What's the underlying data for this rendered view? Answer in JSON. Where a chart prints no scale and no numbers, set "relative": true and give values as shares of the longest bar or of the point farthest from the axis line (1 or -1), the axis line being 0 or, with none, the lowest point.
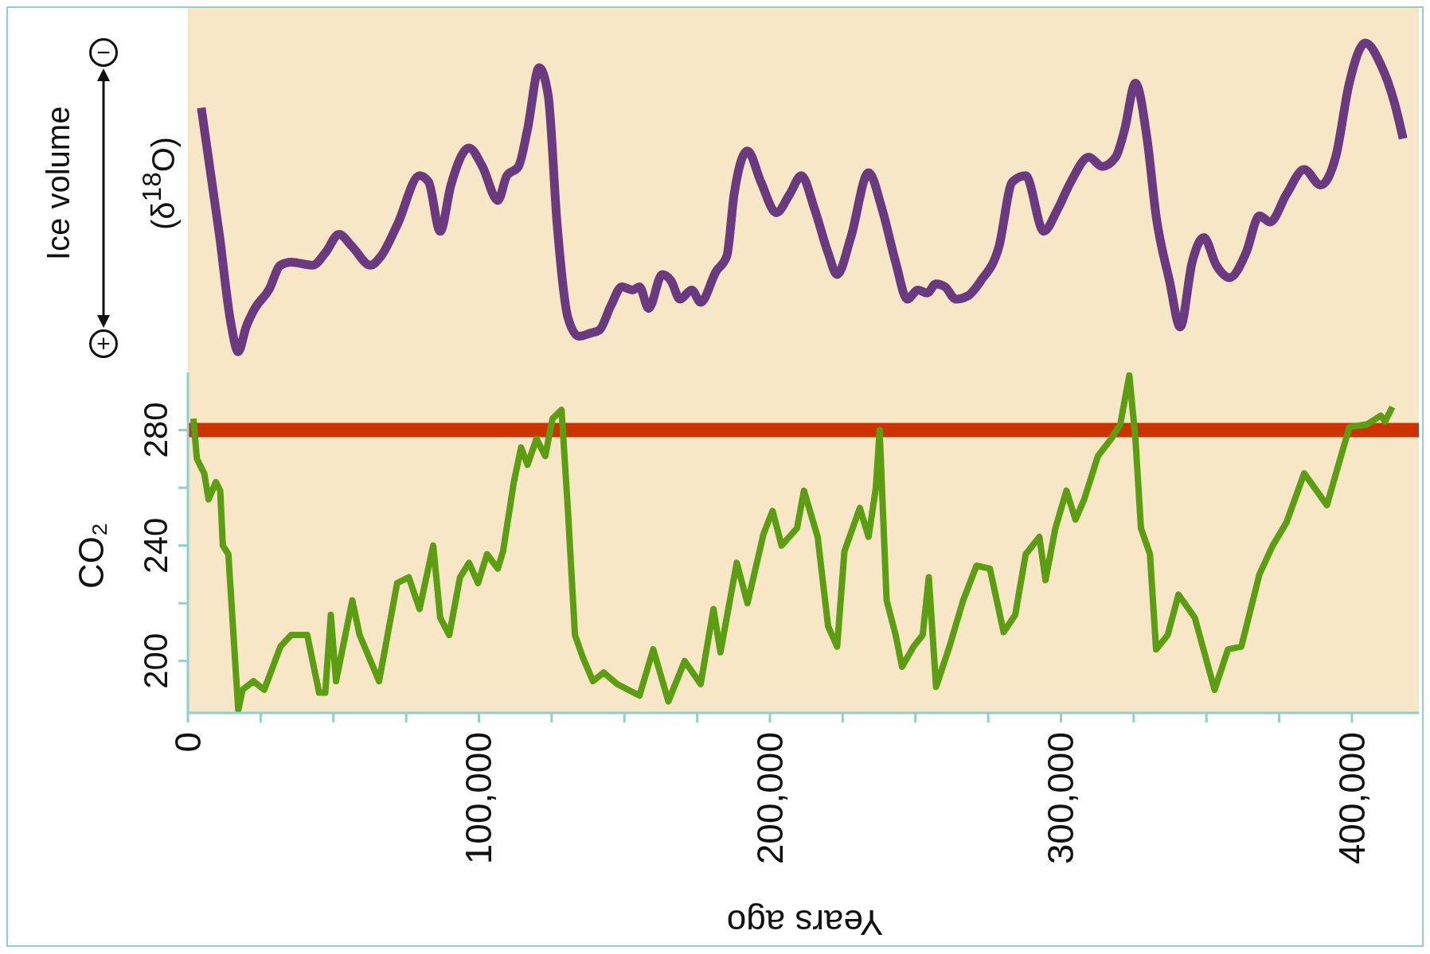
{
  "chart_data": [
    {
      "type": "line",
      "ylabel": "Ice volume (δ$^{18}$O)",
      "relative": true,
      "tick_labels": false,
      "xlim": [
        0,
        423000
      ],
      "annotations": [
        "−",
        "+"
      ],
      "series": [
        {
          "color": "#6a3a80",
          "x": [
            4600,
            10800,
            14800,
            17300,
            20000,
            23000,
            27800,
            31800,
            35500,
            42900,
            47200,
            51900,
            56500,
            62700,
            66400,
            71900,
            79600,
            82700,
            86700,
            90400,
            96600,
            101200,
            106500,
            109600,
            113600,
            116700,
            120700,
            123800,
            126900,
            130600,
            134300,
            138300,
            141400,
            145400,
            149100,
            152800,
            155200,
            158300,
            163000,
            166000,
            169100,
            173100,
            176200,
            181500,
            185200,
            187700,
            192300,
            196900,
            202200,
            206800,
            210800,
            215400,
            220000,
            223100,
            227800,
            233900,
            238600,
            243200,
            247200,
            250900,
            254000,
            257100,
            260200,
            263900,
            267900,
            272500,
            278700,
            283300,
            287900,
            294100,
            298800,
            303400,
            309600,
            314200,
            318800,
            321900,
            325600,
            329600,
            332700,
            337300,
            341000,
            345100,
            349100,
            353400,
            358000,
            363600,
            368200,
            371900,
            377500,
            383600,
            389200,
            394400,
            399100,
            404600,
            409900,
            414500,
            417600
          ],
          "values": [
            0.79,
            0.38,
            0.09,
            0,
            0.08,
            0.14,
            0.2,
            0.28,
            0.29,
            0.28,
            0.32,
            0.38,
            0.34,
            0.28,
            0.31,
            0.41,
            0.57,
            0.55,
            0.39,
            0.54,
            0.66,
            0.6,
            0.49,
            0.57,
            0.6,
            0.72,
            0.92,
            0.83,
            0.41,
            0.11,
            0.05,
            0.06,
            0.07,
            0.15,
            0.21,
            0.2,
            0.21,
            0.14,
            0.25,
            0.23,
            0.17,
            0.2,
            0.16,
            0.26,
            0.31,
            0.51,
            0.65,
            0.55,
            0.45,
            0.51,
            0.57,
            0.46,
            0.32,
            0.25,
            0.37,
            0.58,
            0.46,
            0.29,
            0.17,
            0.2,
            0.19,
            0.22,
            0.21,
            0.17,
            0.18,
            0.23,
            0.34,
            0.55,
            0.57,
            0.39,
            0.46,
            0.55,
            0.63,
            0.6,
            0.63,
            0.72,
            0.87,
            0.69,
            0.44,
            0.23,
            0.08,
            0.29,
            0.37,
            0.28,
            0.24,
            0.32,
            0.44,
            0.42,
            0.51,
            0.59,
            0.54,
            0.63,
            0.87,
            1,
            0.93,
            0.81,
            0.69
          ]
        }
      ]
    },
    {
      "type": "line",
      "xlabel": "Years ago",
      "ylabel": "CO₂",
      "xlim": [
        0,
        423000
      ],
      "xticks": [
        0,
        {
          "value": 25000,
          "label": null
        },
        {
          "value": 50000,
          "label": null
        },
        {
          "value": 75000,
          "label": null
        },
        {
          "value": 100000,
          "label": "100,000"
        },
        {
          "value": 125000,
          "label": null
        },
        {
          "value": 150000,
          "label": null
        },
        {
          "value": 175000,
          "label": null
        },
        {
          "value": 200000,
          "label": "200,000"
        },
        {
          "value": 225000,
          "label": null
        },
        {
          "value": 250000,
          "label": null
        },
        {
          "value": 275000,
          "label": null
        },
        {
          "value": 300000,
          "label": "300,000"
        },
        {
          "value": 325000,
          "label": null
        },
        {
          "value": 350000,
          "label": null
        },
        {
          "value": 375000,
          "label": null
        },
        {
          "value": 400000,
          "label": "400,000"
        }
      ],
      "ylim": [
        182,
        300
      ],
      "yticks": [
        200,
        {
          "value": 220,
          "label": null
        },
        240,
        {
          "value": 260,
          "label": null
        },
        280
      ],
      "ref_lines": [
        {
          "axis": "y",
          "value": 280,
          "color": "#cc3300"
        }
      ],
      "series": [
        {
          "color": "#5c9e12",
          "x": [
            1900,
            3100,
            5600,
            7100,
            9600,
            11100,
            12000,
            13900,
            17300,
            18800,
            22500,
            26200,
            31800,
            35500,
            41000,
            45100,
            47200,
            49100,
            50900,
            56500,
            59000,
            65700,
            71900,
            75900,
            79600,
            84300,
            86700,
            89800,
            93500,
            96600,
            99700,
            102800,
            106500,
            108300,
            112000,
            114500,
            116700,
            119800,
            122800,
            125300,
            128400,
            130600,
            133000,
            135800,
            139200,
            142900,
            147500,
            155200,
            159900,
            165100,
            170700,
            176200,
            180600,
            183000,
            188600,
            192300,
            197800,
            200900,
            204000,
            209300,
            211700,
            216400,
            220000,
            223100,
            225600,
            230900,
            233900,
            236400,
            237700,
            240100,
            243200,
            245400,
            249400,
            252500,
            254600,
            257100,
            261700,
            266400,
            271000,
            275600,
            280300,
            284300,
            287900,
            292600,
            294700,
            298100,
            301900,
            305000,
            308000,
            312700,
            317300,
            320400,
            323500,
            325600,
            327500,
            330600,
            332700,
            336700,
            340400,
            346000,
            352800,
            357400,
            362000,
            368200,
            372800,
            377500,
            383600,
            391400,
            399100,
            405200,
            409900,
            411400,
            413900
          ],
          "values": [
            284,
            270,
            265,
            256,
            262,
            259,
            240,
            237,
            183,
            190,
            193,
            190,
            205,
            209,
            209,
            189,
            189,
            216,
            193,
            221,
            209,
            193,
            227,
            229,
            218,
            240,
            215,
            209,
            229,
            234,
            227,
            237,
            232,
            238,
            262,
            274,
            268,
            277,
            271,
            284,
            287,
            252,
            209,
            201,
            193,
            196,
            192,
            188,
            204,
            186,
            200,
            192,
            218,
            203,
            234,
            220,
            244,
            252,
            240,
            246,
            259,
            243,
            212,
            205,
            238,
            253,
            243,
            260,
            280,
            221,
            209,
            198,
            205,
            209,
            229,
            191,
            205,
            221,
            233,
            232,
            210,
            216,
            237,
            243,
            228,
            246,
            259,
            249,
            256,
            271,
            277,
            282,
            299,
            277,
            246,
            237,
            204,
            209,
            223,
            215,
            190,
            204,
            205,
            230,
            240,
            248,
            265,
            254,
            281,
            282,
            285,
            283,
            288
          ]
        }
      ]
    }
  ]
}
